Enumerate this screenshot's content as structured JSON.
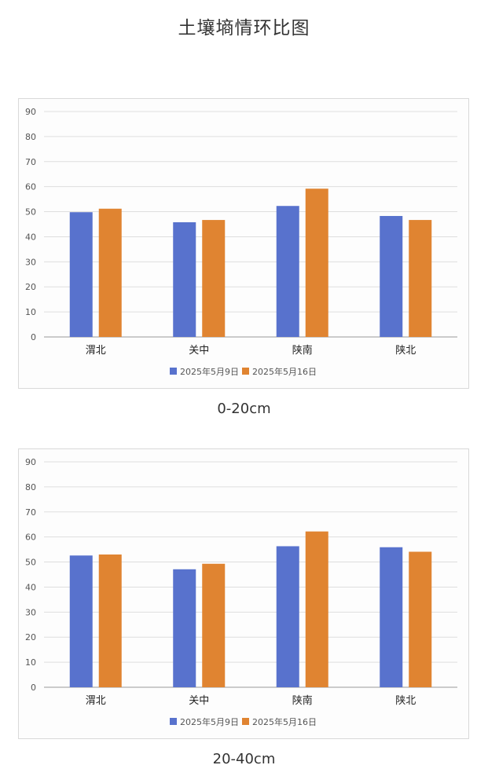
{
  "page": {
    "title": "土壤墒情环比图"
  },
  "captions": [
    "0-20cm",
    "20-40cm"
  ],
  "colors": {
    "series1": "#5872cd",
    "series2": "#e08431",
    "grid": "#dedede",
    "axis": "#999999"
  },
  "chart_data": [
    {
      "type": "bar",
      "caption": "0-20cm",
      "categories": [
        "渭北",
        "关中",
        "陕南",
        "陕北"
      ],
      "series": [
        {
          "name": "2025年5月9日",
          "values": [
            49.8,
            45.8,
            52.3,
            48.3
          ]
        },
        {
          "name": "2025年5月16日",
          "values": [
            51.2,
            46.7,
            59.2,
            46.7
          ]
        }
      ],
      "ylim": [
        0,
        90
      ],
      "yticks": [
        0,
        10,
        20,
        30,
        40,
        50,
        60,
        70,
        80,
        90
      ],
      "grid": true,
      "legend": "bottom"
    },
    {
      "type": "bar",
      "caption": "20-40cm",
      "categories": [
        "渭北",
        "关中",
        "陕南",
        "陕北"
      ],
      "series": [
        {
          "name": "2025年5月9日",
          "values": [
            52.6,
            47.1,
            56.3,
            55.9
          ]
        },
        {
          "name": "2025年5月16日",
          "values": [
            53.0,
            49.3,
            62.2,
            54.1
          ]
        }
      ],
      "ylim": [
        0,
        90
      ],
      "yticks": [
        0,
        10,
        20,
        30,
        40,
        50,
        60,
        70,
        80,
        90
      ],
      "grid": true,
      "legend": "bottom"
    }
  ]
}
